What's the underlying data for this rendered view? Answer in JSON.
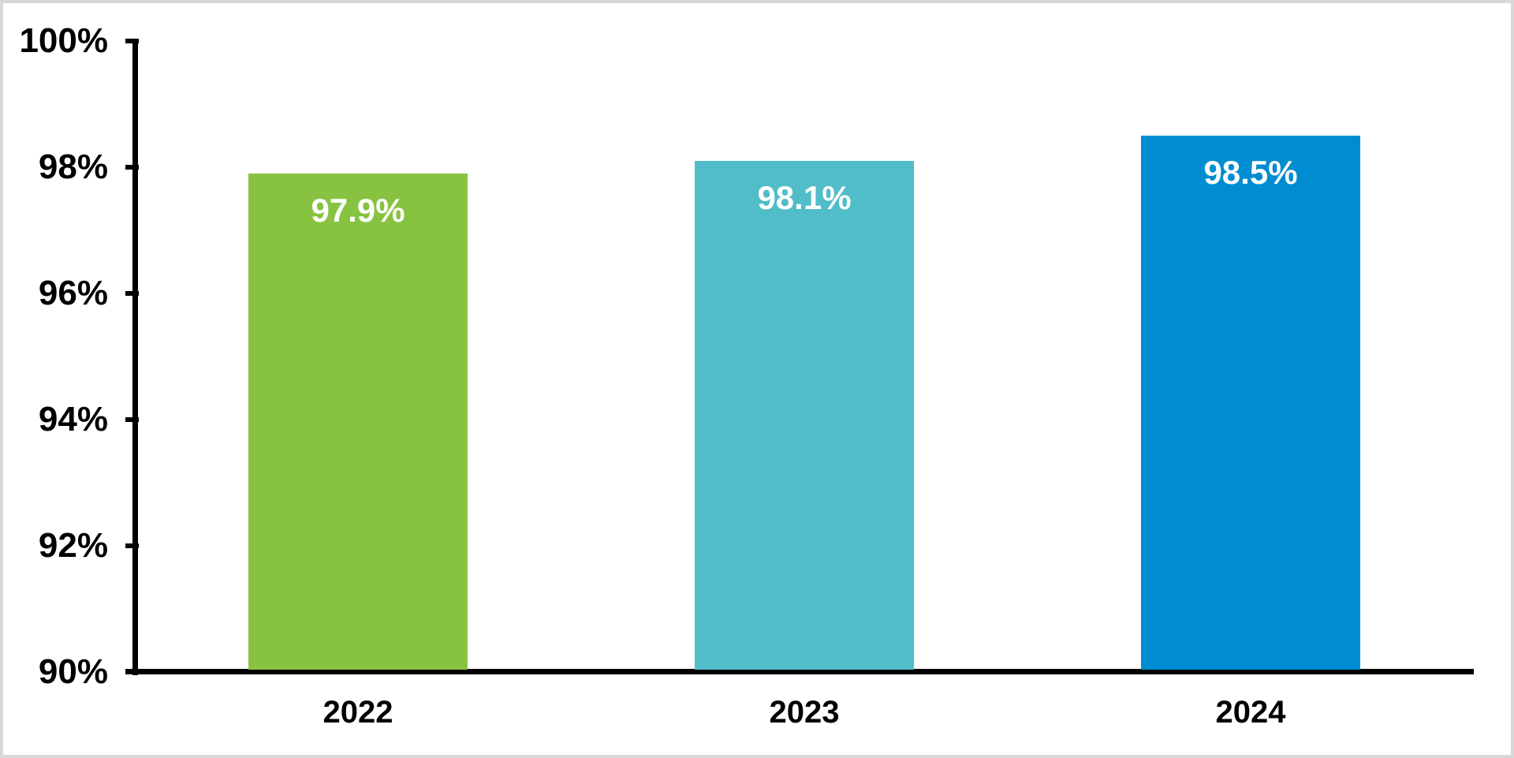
{
  "chart_data": {
    "type": "bar",
    "title": "",
    "xlabel": "",
    "ylabel": "",
    "categories": [
      "2022",
      "2023",
      "2024"
    ],
    "values": [
      97.9,
      98.1,
      98.5
    ],
    "data_labels": [
      "97.9%",
      "98.1%",
      "98.5%"
    ],
    "bar_colors": [
      "#87C340",
      "#50BDC9",
      "#008CD0"
    ],
    "data_label_color": "#FFFFFF",
    "ylim": [
      90,
      100
    ],
    "yticks": [
      {
        "value": 100,
        "label": "100%"
      },
      {
        "value": 98,
        "label": "98%"
      },
      {
        "value": 96,
        "label": "96%"
      },
      {
        "value": 94,
        "label": "94%"
      },
      {
        "value": 92,
        "label": "92%"
      },
      {
        "value": 90,
        "label": "90%"
      }
    ],
    "grid": false,
    "legend": "none",
    "axis_color": "#000000",
    "tick_label_color": "#000000",
    "background_color": "#FFFFFF",
    "frame_border_color": "#D8D8D8"
  }
}
